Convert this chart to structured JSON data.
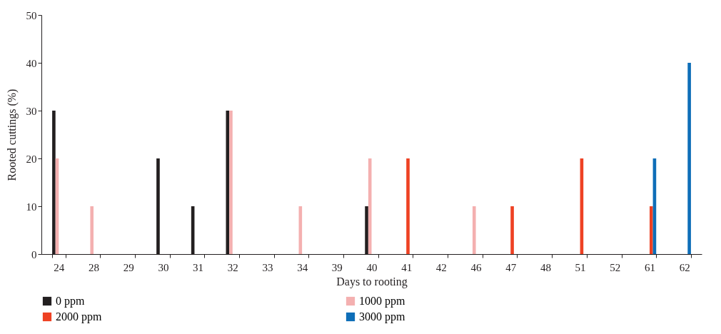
{
  "chart_data": {
    "type": "bar",
    "xlabel": "Days to rooting",
    "ylabel": "Rooted cuttings (%)",
    "categories": [
      "24",
      "28",
      "29",
      "30",
      "31",
      "32",
      "33",
      "34",
      "39",
      "40",
      "41",
      "42",
      "46",
      "47",
      "48",
      "51",
      "52",
      "61",
      "62"
    ],
    "series": [
      {
        "name": "0 ppm",
        "color": "#231f20",
        "values": [
          30,
          null,
          null,
          20,
          10,
          30,
          null,
          null,
          null,
          10,
          null,
          null,
          null,
          null,
          null,
          null,
          null,
          null,
          null
        ]
      },
      {
        "name": "1000 ppm",
        "color": "#f4b0b0",
        "values": [
          20,
          10,
          null,
          null,
          null,
          30,
          null,
          10,
          null,
          20,
          null,
          null,
          10,
          null,
          null,
          null,
          null,
          null,
          null
        ]
      },
      {
        "name": "2000 ppm",
        "color": "#ee4123",
        "values": [
          null,
          null,
          null,
          null,
          null,
          null,
          null,
          null,
          null,
          null,
          20,
          null,
          null,
          10,
          null,
          20,
          null,
          10,
          null
        ]
      },
      {
        "name": "3000 ppm",
        "color": "#0e6eb8",
        "values": [
          null,
          null,
          null,
          null,
          null,
          null,
          null,
          null,
          null,
          null,
          null,
          null,
          null,
          null,
          null,
          null,
          null,
          20,
          40
        ]
      }
    ],
    "ylim": [
      0,
      50
    ],
    "yticks": [
      0,
      10,
      20,
      30,
      40,
      50
    ],
    "grid": false,
    "legend": "bottom"
  }
}
